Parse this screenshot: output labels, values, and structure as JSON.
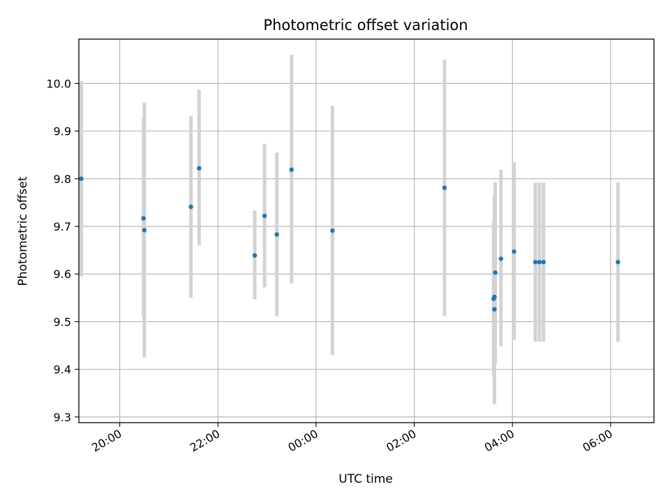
{
  "chart_data": {
    "type": "scatter",
    "title": "Photometric offset variation",
    "xlabel": "UTC time",
    "ylabel": "Photometric offset",
    "x_unit": "UTC time (HH:MM), spanning evening into the next morning",
    "xlim": [
      "19:10",
      "06:53"
    ],
    "ylim": [
      9.288,
      10.093
    ],
    "grid": true,
    "x_ticks": [
      "20:00",
      "22:00",
      "00:00",
      "02:00",
      "04:00",
      "06:00"
    ],
    "y_ticks": [
      "9.3",
      "9.4",
      "9.5",
      "9.6",
      "9.7",
      "9.8",
      "9.9",
      "10.0"
    ],
    "point_color": "#1f77b4",
    "errorbar_color": "#d3d3d3",
    "points": [
      {
        "t": "19:13",
        "y": 9.8,
        "lo": 9.595,
        "hi": 10.005
      },
      {
        "t": "20:29",
        "y": 9.717,
        "lo": 9.51,
        "hi": 9.928
      },
      {
        "t": "20:30",
        "y": 9.692,
        "lo": 9.425,
        "hi": 9.96
      },
      {
        "t": "21:27",
        "y": 9.741,
        "lo": 9.55,
        "hi": 9.932
      },
      {
        "t": "21:37",
        "y": 9.822,
        "lo": 9.66,
        "hi": 9.987
      },
      {
        "t": "22:45",
        "y": 9.639,
        "lo": 9.547,
        "hi": 9.733
      },
      {
        "t": "22:57",
        "y": 9.722,
        "lo": 9.572,
        "hi": 9.873
      },
      {
        "t": "23:12",
        "y": 9.683,
        "lo": 9.511,
        "hi": 9.855
      },
      {
        "t": "23:30",
        "y": 9.819,
        "lo": 9.58,
        "hi": 10.06
      },
      {
        "t": "00:20",
        "y": 9.691,
        "lo": 9.43,
        "hi": 9.953
      },
      {
        "t": "02:37",
        "y": 9.781,
        "lo": 9.512,
        "hi": 10.05
      },
      {
        "t": "03:37",
        "y": 9.548,
        "lo": 9.385,
        "hi": 9.711
      },
      {
        "t": "03:38",
        "y": 9.552,
        "lo": 9.34,
        "hi": 9.766
      },
      {
        "t": "03:38",
        "y": 9.526,
        "lo": 9.327,
        "hi": 9.726
      },
      {
        "t": "03:39",
        "y": 9.603,
        "lo": 9.412,
        "hi": 9.793
      },
      {
        "t": "03:46",
        "y": 9.632,
        "lo": 9.448,
        "hi": 9.819
      },
      {
        "t": "04:02",
        "y": 9.647,
        "lo": 9.462,
        "hi": 9.835
      },
      {
        "t": "04:28",
        "y": 9.625,
        "lo": 9.458,
        "hi": 9.792
      },
      {
        "t": "04:33",
        "y": 9.625,
        "lo": 9.458,
        "hi": 9.792
      },
      {
        "t": "04:38",
        "y": 9.625,
        "lo": 9.458,
        "hi": 9.792
      },
      {
        "t": "06:09",
        "y": 9.625,
        "lo": 9.458,
        "hi": 9.792
      }
    ]
  }
}
